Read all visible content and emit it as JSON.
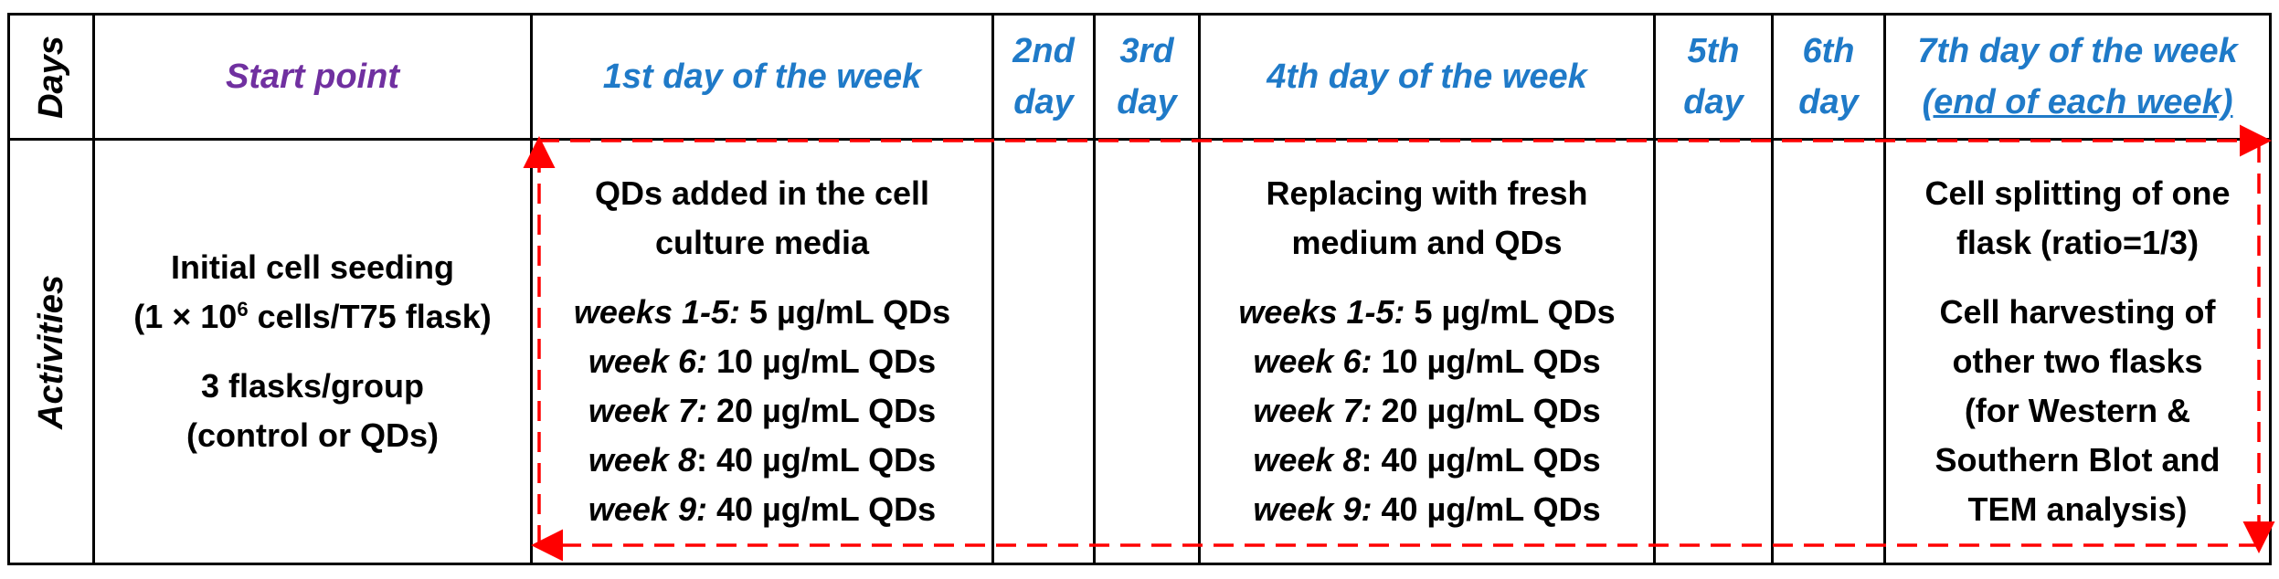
{
  "row_labels": {
    "days": "Days",
    "activities": "Activities"
  },
  "headers": {
    "start": "Start point",
    "day1": "1st day of the week",
    "day2_a": "2nd",
    "day2_b": "day",
    "day3_a": "3rd",
    "day3_b": "day",
    "day4": "4th day of the week",
    "day5_a": "5th",
    "day5_b": "day",
    "day6_a": "6th",
    "day6_b": "day",
    "day7_a": "7th day of the week",
    "day7_b": "(end of each week)"
  },
  "start_activity": {
    "line1": "Initial cell seeding",
    "line2_pre": "(1 × 10",
    "line2_sup": "6",
    "line2_post": " cells/T75 flask)",
    "line3": "3 flasks/group",
    "line4": "(control or QDs)"
  },
  "day1_activity": {
    "line1": "QDs added in the cell",
    "line2": "culture media",
    "doses": [
      {
        "week": "weeks 1-5:",
        "dose": " 5 µg/mL QDs"
      },
      {
        "week": "week 6:",
        "dose": " 10 µg/mL QDs"
      },
      {
        "week": "week 7:",
        "dose": " 20 µg/mL QDs"
      },
      {
        "week": "week 8",
        "dose": ": 40 µg/mL QDs"
      },
      {
        "week": "week 9:",
        "dose": " 40 µg/mL QDs"
      }
    ]
  },
  "day4_activity": {
    "line1": "Replacing with fresh",
    "line2": "medium and QDs",
    "doses": [
      {
        "week": "weeks 1-5:",
        "dose": " 5 µg/mL QDs"
      },
      {
        "week": "week 6:",
        "dose": " 10 µg/mL QDs"
      },
      {
        "week": "week 7:",
        "dose": " 20 µg/mL QDs"
      },
      {
        "week": "week 8",
        "dose": ": 40 µg/mL QDs"
      },
      {
        "week": "week 9:",
        "dose": " 40 µg/mL QDs"
      }
    ]
  },
  "day7_activity": {
    "line1": "Cell splitting of one",
    "line2": "flask (ratio=1/3)",
    "line3": "Cell harvesting of",
    "line4": "other two flasks",
    "line5": "(for Western &",
    "line6": "Southern Blot and",
    "line7": "TEM analysis)"
  },
  "colors": {
    "header_blue": "#1f7ac8",
    "start_purple": "#7030a0",
    "cycle_arrow_red": "#ff0000"
  }
}
